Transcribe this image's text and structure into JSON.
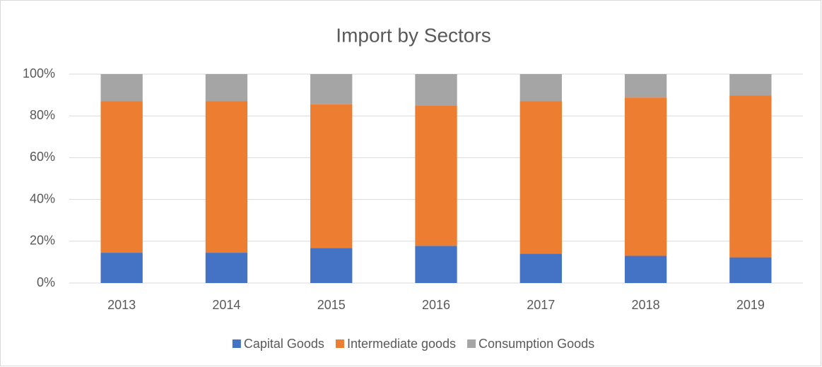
{
  "chart_data": {
    "type": "stacked_bar",
    "title": "Import by Sectors",
    "categories": [
      "2013",
      "2014",
      "2015",
      "2016",
      "2017",
      "2018",
      "2019"
    ],
    "series": [
      {
        "name": "Capital Goods",
        "color": "#4472c4",
        "values": [
          14.5,
          14.5,
          16.8,
          17.8,
          14,
          13,
          12.3
        ]
      },
      {
        "name": "Intermediate goods",
        "color": "#ed7d31",
        "values": [
          72.5,
          72.5,
          68.7,
          67.2,
          73,
          75.8,
          77.4
        ]
      },
      {
        "name": "Consumption Goods",
        "color": "#a5a5a5",
        "values": [
          13,
          13,
          14.5,
          15,
          13,
          11.2,
          10.3
        ]
      }
    ],
    "ylim": [
      0,
      100
    ],
    "yticks": [
      {
        "value": 0,
        "label": "0%"
      },
      {
        "value": 20,
        "label": "20%"
      },
      {
        "value": 40,
        "label": "40%"
      },
      {
        "value": 60,
        "label": "60%"
      },
      {
        "value": 80,
        "label": "80%"
      },
      {
        "value": 100,
        "label": "100%"
      }
    ],
    "grid": true,
    "legend": "bottom"
  }
}
